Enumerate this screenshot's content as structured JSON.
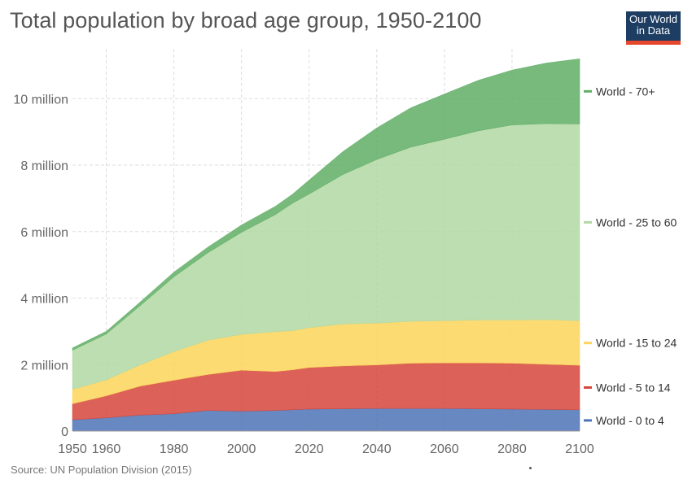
{
  "chart_data": {
    "type": "area",
    "stacked": true,
    "title": "Total population by broad age group, 1950-2100",
    "source": "Source: UN Population Division (2015)",
    "logo": {
      "line1": "Our World",
      "line2": "in Data"
    },
    "xlim": [
      1950,
      2100
    ],
    "ylim": [
      0,
      11500000
    ],
    "x_ticks": [
      "1950",
      "1960",
      "1980",
      "2000",
      "2020",
      "2040",
      "2060",
      "2080",
      "2100"
    ],
    "y_ticks": [
      "0",
      "2 million",
      "4 million",
      "6 million",
      "8 million",
      "10 million"
    ],
    "grid": true,
    "legend_position": "right",
    "x": [
      1950,
      1960,
      1970,
      1980,
      1990,
      2000,
      2010,
      2015,
      2020,
      2030,
      2040,
      2050,
      2060,
      2070,
      2080,
      2090,
      2100
    ],
    "series": [
      {
        "name": "World - 0 to 4",
        "color": "#4c73b6",
        "values": [
          340000,
          400000,
          480000,
          520000,
          620000,
          600000,
          620000,
          640000,
          660000,
          670000,
          680000,
          680000,
          680000,
          670000,
          660000,
          650000,
          640000
        ]
      },
      {
        "name": "World - 5 to 14",
        "color": "#d6453b",
        "values": [
          480000,
          660000,
          870000,
          1010000,
          1080000,
          1230000,
          1170000,
          1200000,
          1250000,
          1290000,
          1310000,
          1360000,
          1370000,
          1380000,
          1380000,
          1360000,
          1340000
        ]
      },
      {
        "name": "World - 15 to 24",
        "color": "#fdd55a",
        "values": [
          430000,
          480000,
          640000,
          860000,
          1030000,
          1080000,
          1200000,
          1180000,
          1200000,
          1260000,
          1260000,
          1260000,
          1270000,
          1290000,
          1300000,
          1340000,
          1340000
        ]
      },
      {
        "name": "World - 25 to 60",
        "color": "#b2d8a2",
        "values": [
          1180000,
          1380000,
          1780000,
          2250000,
          2630000,
          3070000,
          3520000,
          3830000,
          4020000,
          4500000,
          4920000,
          5240000,
          5460000,
          5690000,
          5870000,
          5900000,
          5920000
        ]
      },
      {
        "name": "World - 70+",
        "color": "#5fae65",
        "values": [
          70000,
          80000,
          110000,
          140000,
          170000,
          220000,
          250000,
          270000,
          420000,
          690000,
          950000,
          1180000,
          1360000,
          1520000,
          1650000,
          1820000,
          1960000
        ]
      }
    ]
  }
}
